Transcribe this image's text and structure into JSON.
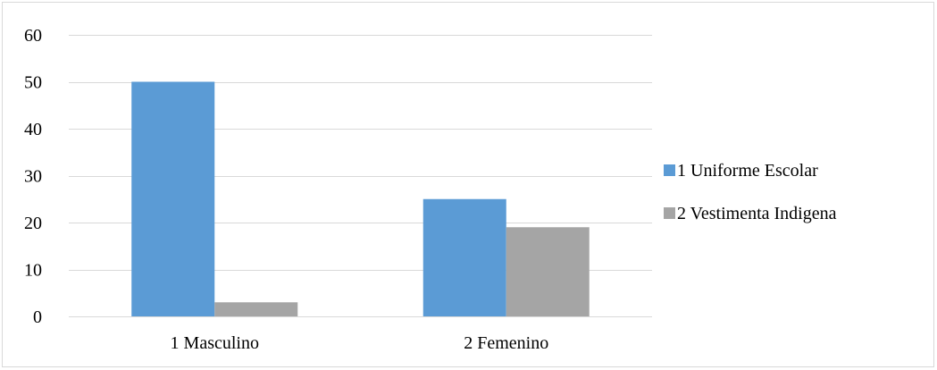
{
  "chart_data": {
    "type": "bar",
    "categories": [
      "1 Masculino",
      "2 Femenino"
    ],
    "series": [
      {
        "name": "1 Uniforme Escolar",
        "values": [
          50,
          25
        ],
        "color": "#5b9bd5"
      },
      {
        "name": "2 Vestimenta Indigena",
        "values": [
          3,
          19
        ],
        "color": "#a5a5a5"
      }
    ],
    "title": "",
    "xlabel": "",
    "ylabel": "",
    "ylim": [
      0,
      60
    ],
    "yticks": [
      "0",
      "10",
      "20",
      "30",
      "40",
      "50",
      "60"
    ],
    "grid": true,
    "legend_position": "right",
    "colors": {
      "gridline": "#d9d9d9",
      "axis": "#d9d9d9",
      "frame": "#d9d9d9"
    }
  }
}
